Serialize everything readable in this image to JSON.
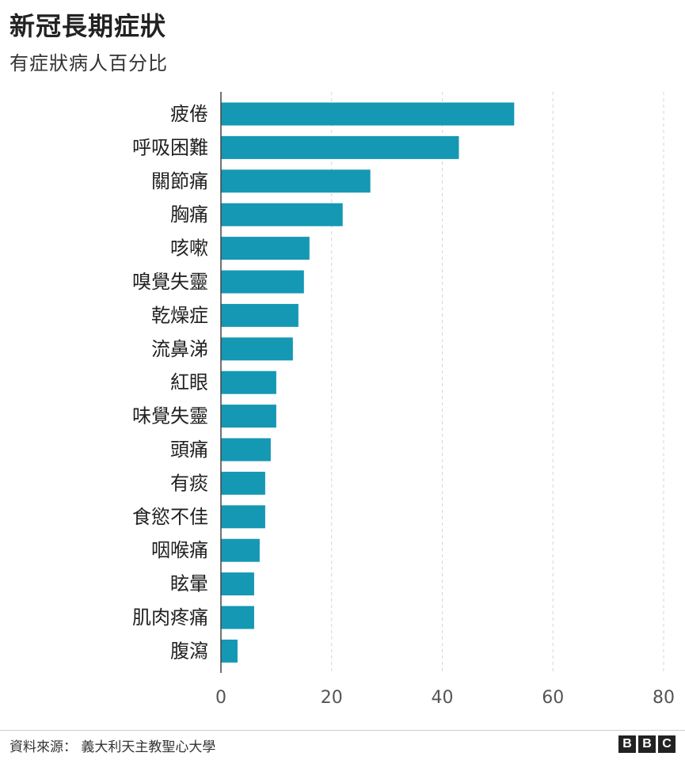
{
  "header": {
    "title": "新冠長期症狀",
    "subtitle": "有症狀病人百分比"
  },
  "footer": {
    "source": "資料來源： 義大利天主教聖心大學",
    "logo_letters": [
      "B",
      "B",
      "C"
    ]
  },
  "colors": {
    "bar": "#1598b3",
    "grid": "#d6d6d6",
    "axis": "#444444"
  },
  "chart_data": {
    "type": "bar",
    "orientation": "horizontal",
    "title": "新冠長期症狀",
    "subtitle": "有症狀病人百分比",
    "categories": [
      "疲倦",
      "呼吸困難",
      "關節痛",
      "胸痛",
      "咳嗽",
      "嗅覺失靈",
      "乾燥症",
      "流鼻涕",
      "紅眼",
      "味覺失靈",
      "頭痛",
      "有痰",
      "食慾不佳",
      "咽喉痛",
      "眩暈",
      "肌肉疼痛",
      "腹瀉"
    ],
    "values": [
      53,
      43,
      27,
      22,
      16,
      15,
      14,
      13,
      10,
      10,
      9,
      8,
      8,
      7,
      6,
      6,
      3
    ],
    "xlim": [
      0,
      80
    ],
    "xticks": [
      0,
      20,
      40,
      60,
      80
    ],
    "grid": "vertical-dashed"
  }
}
